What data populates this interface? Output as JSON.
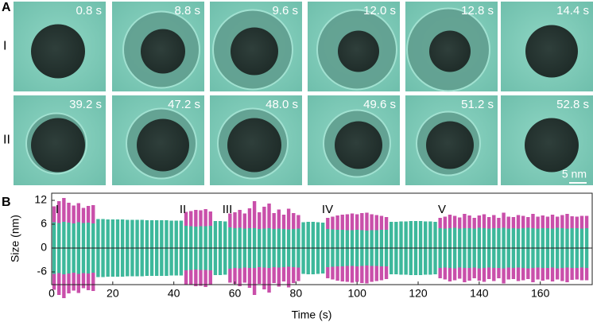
{
  "panel_a": {
    "label": "A",
    "scale_bar": "5 nm",
    "rows": [
      {
        "label": "I",
        "times": [
          "0.8 s",
          "8.8 s",
          "9.6 s",
          "12.0 s",
          "12.8 s",
          "14.4 s"
        ]
      },
      {
        "label": "II",
        "times": [
          "39.2 s",
          "47.2 s",
          "48.0 s",
          "49.6 s",
          "51.2 s",
          "52.8 s"
        ]
      }
    ]
  },
  "panel_b_label": "B",
  "chart_data": {
    "type": "bar",
    "xlabel": "Time (s)",
    "ylabel": "Size (nm)",
    "annotations": [
      "I",
      "II",
      "III",
      "IV",
      "V"
    ],
    "xlim": [
      0,
      177
    ],
    "xticks": [
      0,
      20,
      40,
      60,
      80,
      100,
      120,
      140,
      160
    ],
    "ylim": [
      -9.2,
      13.8
    ],
    "yticks": [
      -6,
      0,
      6,
      12
    ],
    "x": [
      0.8,
      2.4,
      4,
      5.6,
      7.2,
      8.8,
      10.4,
      12,
      13.6,
      15.2,
      16.8,
      18.4,
      20,
      21.6,
      23.2,
      24.8,
      26.4,
      28,
      29.6,
      31.2,
      32.8,
      34.4,
      36,
      37.6,
      39.2,
      40.8,
      42.4,
      44,
      45.6,
      47.2,
      48.8,
      50.4,
      52,
      53.6,
      55.2,
      56.8,
      58.4,
      60,
      61.6,
      63.2,
      64.8,
      66.4,
      68,
      69.6,
      71.2,
      72.8,
      74.4,
      76,
      77.6,
      79.2,
      80.8,
      82.4,
      84,
      85.6,
      87.2,
      88.8,
      90.4,
      92,
      93.6,
      95.2,
      96.8,
      98.4,
      100,
      101.6,
      103.2,
      104.8,
      106.4,
      108,
      109.6,
      111.2,
      112.8,
      114.4,
      116,
      117.6,
      119.2,
      120.8,
      122.4,
      124,
      125.6,
      127.2,
      128.8,
      130.4,
      132,
      133.6,
      135.2,
      136.8,
      138.4,
      140,
      141.6,
      143.2,
      144.8,
      146.4,
      148,
      149.6,
      151.2,
      152.8,
      154.4,
      156,
      157.6,
      159.2,
      160.8,
      162.4,
      164,
      165.6,
      167.2,
      168.8,
      170.4,
      172,
      173.6,
      175.2
    ],
    "series": [
      {
        "color": "#3db89b",
        "values": [
          6.5,
          6.3,
          6.6,
          6.4,
          6.2,
          6.5,
          6.3,
          6.4,
          6.2,
          7.3,
          7.3,
          7.2,
          7.2,
          7.2,
          7.2,
          7.1,
          7.1,
          7.1,
          7.1,
          7.0,
          7.0,
          7.0,
          7.0,
          7.0,
          6.9,
          6.9,
          6.9,
          5.6,
          5.5,
          5.4,
          5.5,
          5.5,
          5.6,
          6.8,
          6.8,
          6.7,
          5.2,
          5.0,
          5.1,
          4.9,
          5.0,
          5.0,
          4.8,
          4.9,
          5.0,
          4.8,
          4.9,
          4.8,
          4.7,
          4.8,
          4.9,
          6.5,
          6.6,
          6.6,
          6.5,
          6.4,
          4.8,
          4.7,
          4.6,
          4.6,
          4.5,
          4.5,
          4.6,
          4.5,
          4.4,
          4.5,
          4.5,
          4.6,
          4.6,
          6.6,
          6.6,
          6.7,
          6.7,
          6.8,
          6.8,
          6.8,
          6.7,
          6.7,
          6.6,
          5.0,
          4.9,
          5.0,
          5.1,
          4.9,
          5.0,
          5.0,
          4.9,
          5.1,
          5.0,
          4.9,
          5.0,
          5.0,
          5.1,
          4.9,
          5.0,
          4.9,
          5.0,
          5.1,
          5.0,
          4.9,
          5.0,
          5.0,
          4.9,
          5.1,
          5.0,
          4.9,
          5.0,
          5.0,
          4.9,
          5.0
        ]
      },
      {
        "color": "#c94faa",
        "values": [
          4.0,
          5.5,
          6.0,
          5.0,
          4.5,
          4.8,
          3.8,
          4.2,
          4.6,
          0,
          0,
          0,
          0,
          0,
          0,
          0,
          0,
          0,
          0,
          0,
          0,
          0,
          0,
          0,
          0,
          0,
          0,
          3.5,
          3.8,
          4.2,
          4.0,
          4.3,
          3.6,
          0,
          0,
          0,
          3.5,
          4.0,
          4.5,
          3.8,
          5.0,
          6.8,
          4.2,
          5.5,
          6.2,
          4.0,
          4.8,
          3.6,
          5.2,
          4.0,
          3.4,
          0,
          0,
          0,
          0,
          0,
          2.8,
          3.2,
          3.6,
          3.8,
          4.0,
          4.2,
          3.9,
          4.3,
          4.5,
          4.0,
          3.8,
          3.5,
          3.2,
          0,
          0,
          0,
          0,
          0,
          0,
          0,
          0,
          0,
          0,
          2.6,
          3.0,
          3.4,
          3.0,
          2.8,
          3.6,
          3.2,
          2.7,
          3.1,
          3.5,
          2.9,
          3.3,
          2.6,
          3.8,
          3.0,
          2.8,
          3.4,
          3.1,
          2.7,
          3.6,
          3.0,
          3.2,
          2.9,
          3.5,
          2.8,
          3.3,
          3.7,
          3.0,
          2.9,
          3.2,
          3.1
        ]
      }
    ]
  }
}
